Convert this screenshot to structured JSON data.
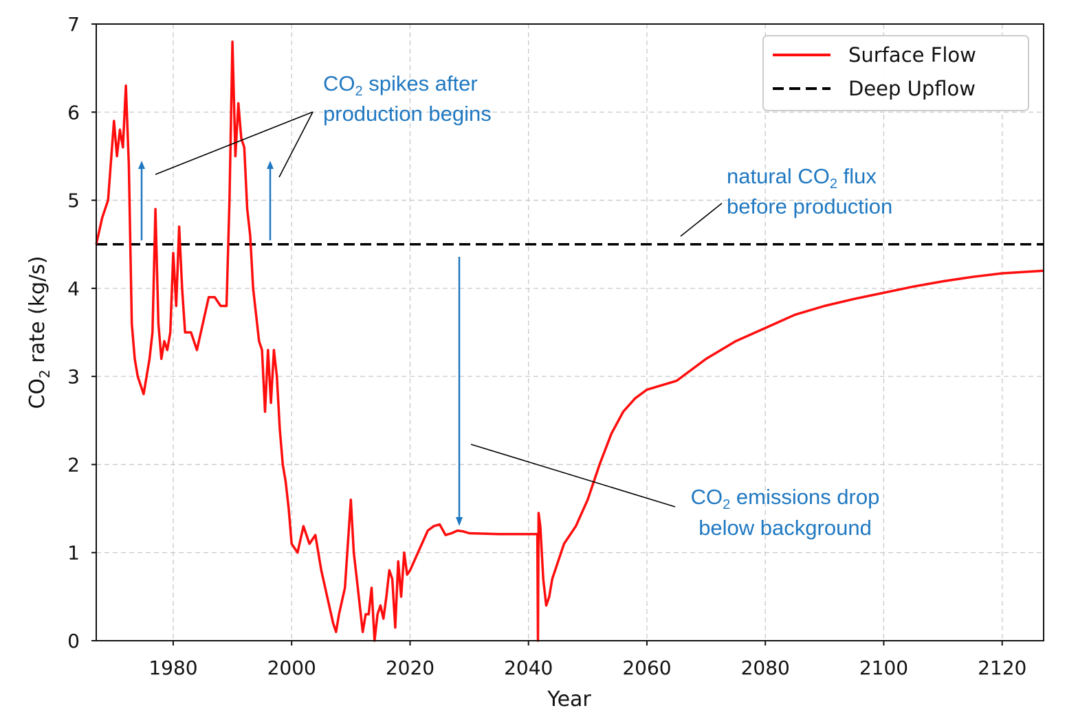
{
  "colors": {
    "surface_flow": "#ff0d0d",
    "deep_upflow": "#000000",
    "annotation": "#1f78c1",
    "grid": "#c8c8c8"
  },
  "chart_data": {
    "type": "line",
    "title": "",
    "xlabel": "Year",
    "ylabel": {
      "main": "CO",
      "sub": "2",
      "rest": " rate (kg/s)"
    },
    "xlim": [
      1967,
      2127
    ],
    "ylim": [
      0,
      7
    ],
    "grid": true,
    "legend_position": "top-right",
    "xticks": [
      1980,
      2000,
      2020,
      2040,
      2060,
      2080,
      2100,
      2120
    ],
    "yticks": [
      0,
      1,
      2,
      3,
      4,
      5,
      6,
      7
    ],
    "series": [
      {
        "name": "Surface Flow",
        "style": "solid",
        "x": [
          1967,
          1968,
          1969,
          1970,
          1970.5,
          1971,
          1971.5,
          1972,
          1972.5,
          1973,
          1973.5,
          1974,
          1974.5,
          1975,
          1976,
          1976.5,
          1977,
          1977.5,
          1978,
          1978.5,
          1979,
          1979.5,
          1980,
          1980.5,
          1981,
          1981.5,
          1982,
          1983,
          1984,
          1985,
          1986,
          1987,
          1988,
          1989,
          1989.5,
          1990,
          1990.5,
          1991,
          1991.5,
          1992,
          1992.5,
          1993,
          1993.5,
          1994,
          1994.5,
          1995,
          1995.5,
          1996,
          1996.5,
          1997,
          1997.5,
          1998,
          1998.5,
          1999,
          1999.5,
          2000,
          2001,
          2002,
          2003,
          2004,
          2005,
          2006,
          2007,
          2007.5,
          2008,
          2009,
          2010,
          2010.5,
          2011,
          2011.5,
          2012,
          2012.5,
          2013,
          2013.5,
          2014,
          2014.5,
          2015,
          2015.5,
          2016,
          2016.5,
          2017,
          2017.5,
          2018,
          2018.5,
          2019,
          2019.5,
          2020,
          2021,
          2022,
          2023,
          2024,
          2025,
          2026,
          2027,
          2028,
          2029,
          2030,
          2035,
          2041.5,
          2041.6,
          2041.7,
          2042,
          2042.5,
          2043,
          2043.5,
          2044,
          2045,
          2046,
          2048,
          2050,
          2052,
          2054,
          2056,
          2058,
          2060,
          2065,
          2070,
          2075,
          2080,
          2085,
          2090,
          2095,
          2100,
          2105,
          2110,
          2115,
          2120,
          2127
        ],
        "y": [
          4.5,
          4.8,
          5.0,
          5.9,
          5.5,
          5.8,
          5.6,
          6.3,
          5.4,
          3.6,
          3.2,
          3.0,
          2.9,
          2.8,
          3.2,
          3.5,
          4.9,
          3.6,
          3.2,
          3.4,
          3.3,
          3.5,
          4.4,
          3.8,
          4.7,
          4.0,
          3.5,
          3.5,
          3.3,
          3.6,
          3.9,
          3.9,
          3.8,
          3.8,
          5.0,
          6.8,
          5.5,
          6.1,
          5.7,
          5.6,
          4.9,
          4.6,
          4.0,
          3.7,
          3.4,
          3.3,
          2.6,
          3.3,
          2.7,
          3.3,
          3.0,
          2.4,
          2.0,
          1.8,
          1.5,
          1.1,
          1.0,
          1.3,
          1.1,
          1.2,
          0.8,
          0.5,
          0.2,
          0.1,
          0.3,
          0.6,
          1.6,
          1.0,
          0.7,
          0.4,
          0.1,
          0.3,
          0.3,
          0.6,
          0.0,
          0.3,
          0.4,
          0.25,
          0.5,
          0.8,
          0.7,
          0.15,
          0.9,
          0.5,
          1.0,
          0.75,
          0.8,
          0.95,
          1.1,
          1.25,
          1.3,
          1.32,
          1.2,
          1.22,
          1.25,
          1.24,
          1.22,
          1.21,
          1.21,
          0.0,
          1.45,
          1.3,
          0.7,
          0.4,
          0.5,
          0.7,
          0.9,
          1.1,
          1.3,
          1.6,
          2.0,
          2.35,
          2.6,
          2.75,
          2.85,
          2.95,
          3.2,
          3.4,
          3.55,
          3.7,
          3.8,
          3.88,
          3.95,
          4.02,
          4.08,
          4.13,
          4.17,
          4.2
        ]
      },
      {
        "name": "Deep Upflow",
        "style": "dashed",
        "x": [
          1967,
          2127
        ],
        "y": [
          4.5,
          4.5
        ]
      }
    ],
    "annotations": [
      {
        "lines": [
          [
            "CO",
            "2",
            " spikes after"
          ],
          [
            "production begins"
          ]
        ]
      },
      {
        "lines": [
          [
            "natural CO",
            "2",
            " flux"
          ],
          [
            "before production"
          ]
        ]
      },
      {
        "lines": [
          [
            "CO",
            "2",
            " emissions drop"
          ],
          [
            "below background"
          ]
        ]
      }
    ]
  }
}
